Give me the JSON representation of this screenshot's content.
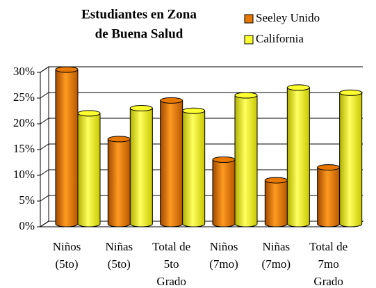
{
  "chart_data": {
    "type": "bar3d",
    "title": [
      "Estudiantes en Zona",
      "de Buena Salud"
    ],
    "categories": [
      [
        "Niños",
        "(5to)"
      ],
      [
        "Niñas",
        "(5to)"
      ],
      [
        "Total de",
        "5to",
        "Grado"
      ],
      [
        "Niños",
        "(7mo)"
      ],
      [
        "Niñas",
        "(7mo)"
      ],
      [
        "Total de",
        "7mo",
        "Grado"
      ]
    ],
    "series": [
      {
        "name": "Seeley Unido",
        "color": "#e87800",
        "values": [
          30,
          16.5,
          24,
          12.5,
          8.5,
          11
        ]
      },
      {
        "name": "California",
        "color": "#ffff30",
        "values": [
          21.5,
          22.5,
          22,
          25,
          26.5,
          25.5
        ]
      }
    ],
    "ylim": [
      0,
      30
    ],
    "yticks": [
      {
        "value": 0,
        "label": "0%"
      },
      {
        "value": 5,
        "label": "5%"
      },
      {
        "value": 10,
        "label": "10%"
      },
      {
        "value": 15,
        "label": "15%"
      },
      {
        "value": 20,
        "label": "20%"
      },
      {
        "value": 25,
        "label": "25%"
      },
      {
        "value": 30,
        "label": "30%"
      }
    ],
    "grid": true,
    "legend": "top-right"
  }
}
